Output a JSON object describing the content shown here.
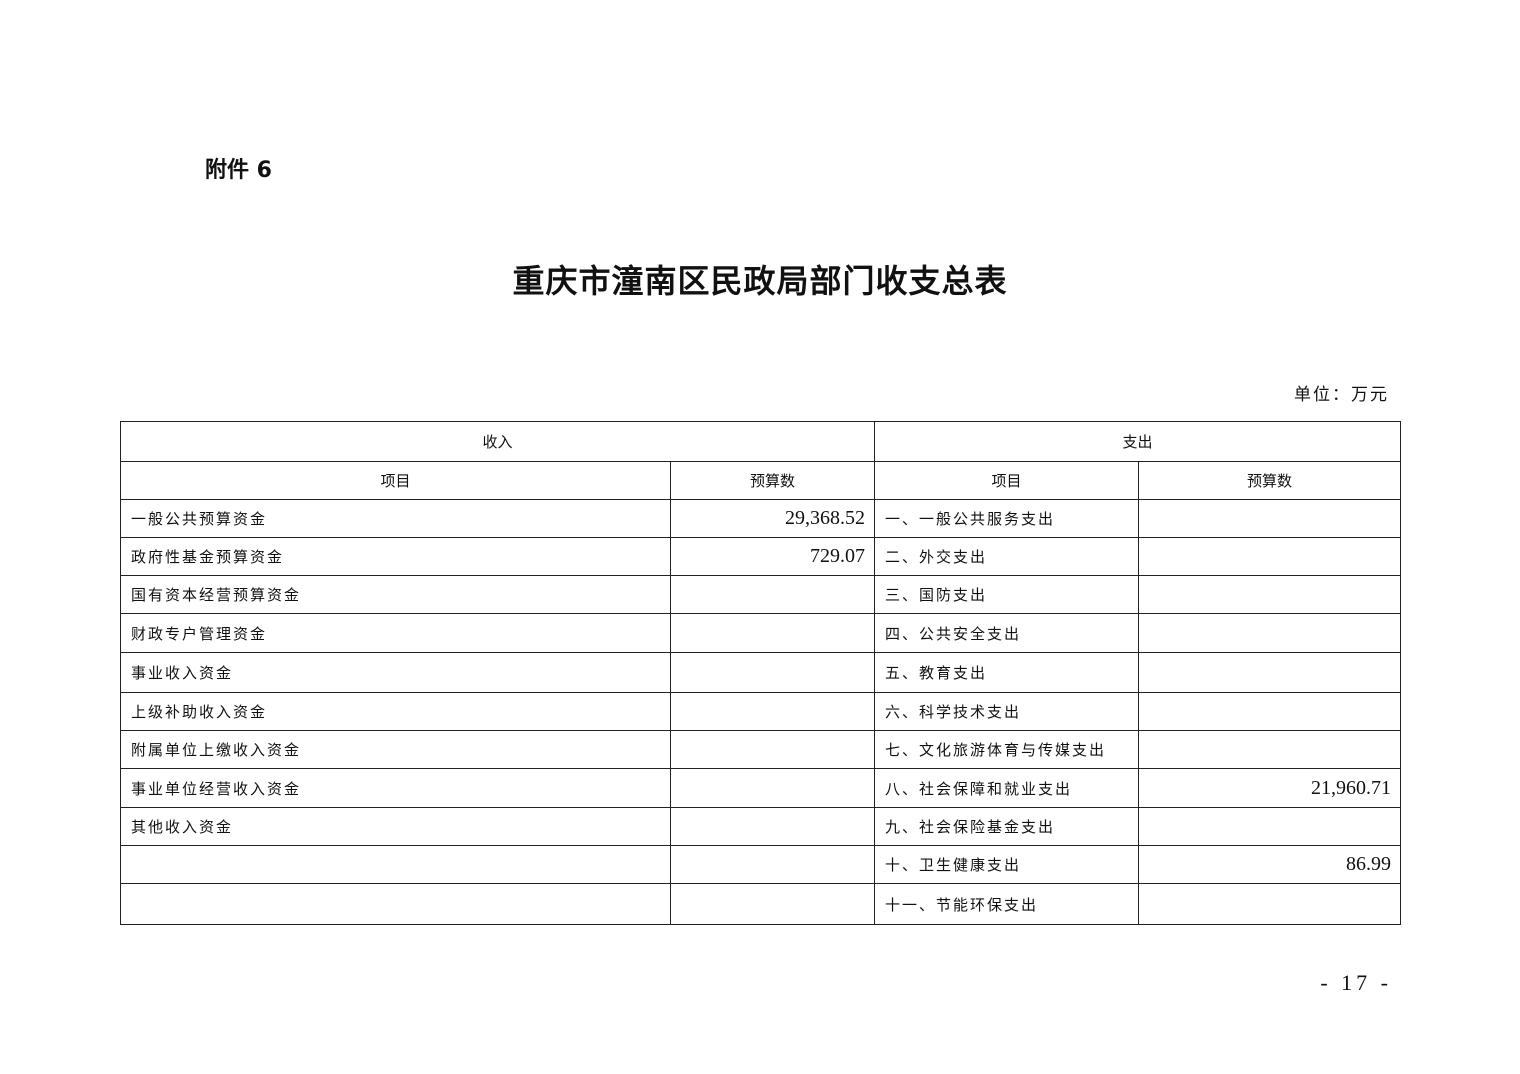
{
  "attachment_label": "附件 6",
  "title": "重庆市潼南区民政局部门收支总表",
  "unit": "单位：万元",
  "table": {
    "group_headers": {
      "income": "收入",
      "expense": "支出"
    },
    "column_headers": {
      "income_item": "项目",
      "income_amount": "预算数",
      "expense_item": "项目",
      "expense_amount": "预算数"
    },
    "rows": [
      {
        "income_item": "一般公共预算资金",
        "income_amount": "29,368.52",
        "expense_item": "一、一般公共服务支出",
        "expense_amount": ""
      },
      {
        "income_item": "政府性基金预算资金",
        "income_amount": "729.07",
        "expense_item": "二、外交支出",
        "expense_amount": ""
      },
      {
        "income_item": "国有资本经营预算资金",
        "income_amount": "",
        "expense_item": "三、国防支出",
        "expense_amount": ""
      },
      {
        "income_item": "财政专户管理资金",
        "income_amount": "",
        "expense_item": "四、公共安全支出",
        "expense_amount": ""
      },
      {
        "income_item": "事业收入资金",
        "income_amount": "",
        "expense_item": "五、教育支出",
        "expense_amount": ""
      },
      {
        "income_item": "上级补助收入资金",
        "income_amount": "",
        "expense_item": "六、科学技术支出",
        "expense_amount": ""
      },
      {
        "income_item": "附属单位上缴收入资金",
        "income_amount": "",
        "expense_item": "七、文化旅游体育与传媒支出",
        "expense_amount": ""
      },
      {
        "income_item": "事业单位经营收入资金",
        "income_amount": "",
        "expense_item": "八、社会保障和就业支出",
        "expense_amount": "21,960.71"
      },
      {
        "income_item": "其他收入资金",
        "income_amount": "",
        "expense_item": "九、社会保险基金支出",
        "expense_amount": ""
      },
      {
        "income_item": "",
        "income_amount": "",
        "expense_item": "十、卫生健康支出",
        "expense_amount": "86.99"
      },
      {
        "income_item": "",
        "income_amount": "",
        "expense_item": "十一、节能环保支出",
        "expense_amount": ""
      }
    ]
  },
  "page_number": "- 17 -"
}
